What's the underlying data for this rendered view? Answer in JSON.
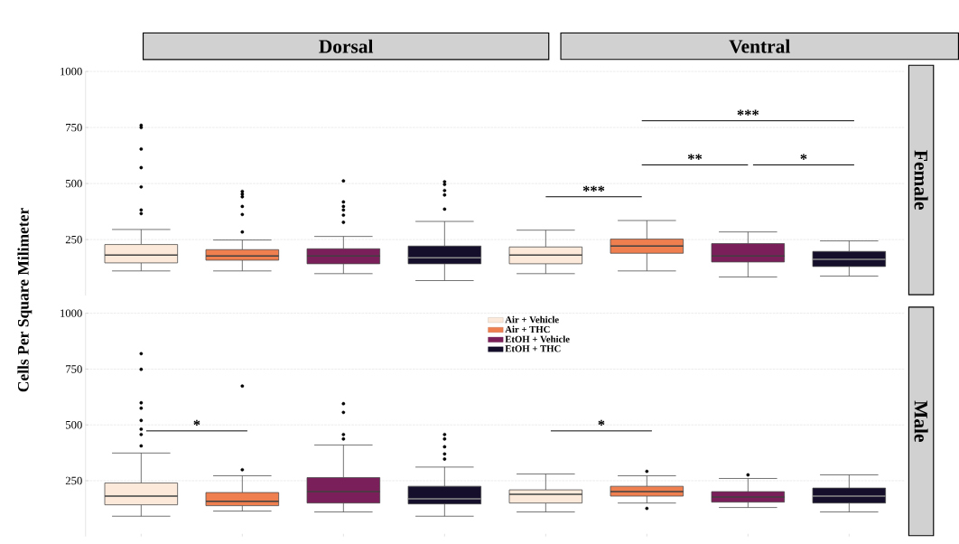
{
  "chart_data": [
    {
      "type": "box",
      "ylabel": "Cells Per Square Milimeter",
      "y2label": "Female",
      "categories": [
        null,
        null,
        null,
        null,
        null,
        null,
        null,
        null
      ],
      "ylim": [
        0,
        1000
      ],
      "yticks": [
        250,
        500,
        750,
        1000
      ],
      "grid": "y",
      "series": [
        {
          "color": "#fce9d9",
          "boxes": [
            {
              "low": 110,
              "q1": 146,
              "median": 181,
              "q3": 228,
              "high": 295,
              "outliers": [
                760,
                750,
                654,
                571,
                485,
                382,
                366
              ]
            },
            null,
            null,
            null,
            {
              "low": 98,
              "q1": 142,
              "median": 181,
              "q3": 217,
              "high": 292
            },
            null,
            null,
            null
          ]
        },
        {
          "color": "#f07f4f",
          "boxes": [
            null,
            {
              "low": 110,
              "q1": 158,
              "median": 177,
              "q3": 205,
              "high": 248,
              "outliers": [
                465,
                453,
                441,
                398,
                362,
                284
              ]
            },
            null,
            null,
            null,
            {
              "low": 110,
              "q1": 189,
              "median": 221,
              "q3": 252,
              "high": 335
            },
            null,
            null
          ]
        },
        {
          "color": "#7b1f5a",
          "boxes": [
            null,
            null,
            {
              "low": 98,
              "q1": 142,
              "median": 177,
              "q3": 209,
              "high": 264,
              "outliers": [
                512,
                418,
                398,
                382,
                359,
                327
              ]
            },
            null,
            null,
            null,
            {
              "low": 83,
              "q1": 150,
              "median": 177,
              "q3": 232,
              "high": 284
            },
            null
          ]
        },
        {
          "color": "#150f2b",
          "boxes": [
            null,
            null,
            null,
            {
              "low": 67,
              "q1": 142,
              "median": 169,
              "q3": 221,
              "high": 331,
              "outliers": [
                508,
                496,
                469,
                449,
                386
              ]
            },
            null,
            null,
            null,
            {
              "low": 87,
              "q1": 130,
              "median": 162,
              "q3": 197,
              "high": 244
            }
          ]
        }
      ],
      "annotations": [
        "Dorsal",
        "Ventral",
        "***",
        "**",
        "*",
        "***"
      ]
    },
    {
      "type": "box",
      "y2label": "Male",
      "categories": [
        null,
        null,
        null,
        null,
        null,
        null,
        null,
        null
      ],
      "ylim": [
        0,
        1000
      ],
      "yticks": [
        250,
        500,
        750,
        1000
      ],
      "grid": "y",
      "legend": "top",
      "series": [
        {
          "name": "Air + Vehicle",
          "color": "#fce9d9",
          "boxes": [
            {
              "low": 91,
              "q1": 142,
              "median": 181,
              "q3": 240,
              "high": 374,
              "outliers": [
                819,
                749,
                599,
                575,
                520,
                481,
                457,
                406
              ]
            },
            null,
            null,
            null,
            {
              "low": 110,
              "q1": 150,
              "median": 189,
              "q3": 209,
              "high": 280
            },
            null,
            null,
            null
          ]
        },
        {
          "name": "Air + THC",
          "color": "#f07f4f",
          "boxes": [
            null,
            {
              "low": 114,
              "q1": 138,
              "median": 158,
              "q3": 197,
              "high": 272,
              "outliers": [
                674,
                299
              ]
            },
            null,
            null,
            null,
            {
              "low": 150,
              "q1": 181,
              "median": 201,
              "q3": 225,
              "high": 272,
              "outliers": [
                292,
                126
              ]
            },
            null,
            null
          ]
        },
        {
          "name": "EtOH + Vehicle",
          "color": "#7b1f5a",
          "boxes": [
            null,
            null,
            {
              "low": 110,
              "q1": 150,
              "median": 201,
              "q3": 264,
              "high": 410,
              "outliers": [
                595,
                556,
                457,
                437
              ]
            },
            null,
            null,
            null,
            {
              "low": 130,
              "q1": 154,
              "median": 177,
              "q3": 201,
              "high": 260,
              "outliers": [
                276
              ]
            },
            null
          ]
        },
        {
          "name": "EtOH + THC",
          "color": "#150f2b",
          "boxes": [
            null,
            null,
            null,
            {
              "low": 91,
              "q1": 146,
              "median": 169,
              "q3": 225,
              "high": 311,
              "outliers": [
                457,
                437,
                402,
                370,
                347
              ]
            },
            null,
            null,
            null,
            {
              "low": 110,
              "q1": 150,
              "median": 181,
              "q3": 217,
              "high": 276
            }
          ]
        }
      ],
      "annotations": [
        "*",
        "*"
      ]
    }
  ]
}
